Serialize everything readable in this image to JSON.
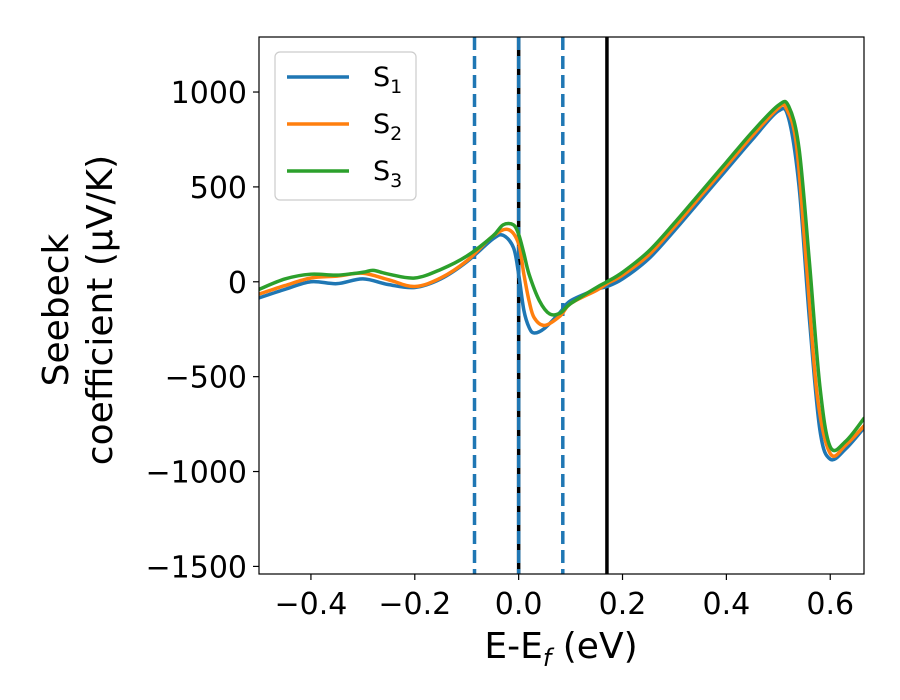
{
  "chart_data": {
    "type": "line",
    "xlabel": "E-E_f (eV)",
    "xlabel_parts": [
      "E-E",
      "f",
      " (eV)"
    ],
    "ylabel_lines": [
      "Seebeck",
      "coefficient  (μV/K)"
    ],
    "xlim": [
      -0.5,
      0.665
    ],
    "ylim": [
      -1540,
      1290
    ],
    "xticks": [
      -0.4,
      -0.2,
      0.0,
      0.2,
      0.4,
      0.6
    ],
    "xtick_labels": [
      "−0.4",
      "−0.2",
      "0.0",
      "0.2",
      "0.4",
      "0.6"
    ],
    "yticks": [
      -1500,
      -1000,
      -500,
      0,
      500,
      1000
    ],
    "ytick_labels": [
      "−1500",
      "−1000",
      "−500",
      "0",
      "500",
      "1000"
    ],
    "grid": false,
    "legend_position": "top-left",
    "series": [
      {
        "name": "S1",
        "label_base": "S",
        "label_sub": "1",
        "color": "#1f77b4",
        "x": [
          -0.5,
          -0.45,
          -0.4,
          -0.35,
          -0.3,
          -0.25,
          -0.2,
          -0.15,
          -0.1,
          -0.05,
          -0.03,
          -0.01,
          0.0,
          0.01,
          0.02,
          0.03,
          0.05,
          0.08,
          0.1,
          0.15,
          0.17,
          0.2,
          0.25,
          0.3,
          0.35,
          0.4,
          0.45,
          0.5,
          0.52,
          0.54,
          0.56,
          0.58,
          0.6,
          0.63,
          0.665
        ],
        "y": [
          -85,
          -40,
          0,
          -10,
          15,
          -15,
          -30,
          15,
          105,
          225,
          245,
          180,
          40,
          -150,
          -240,
          -270,
          -245,
          -160,
          -100,
          -40,
          -25,
          15,
          120,
          270,
          430,
          590,
          750,
          900,
          860,
          500,
          -200,
          -780,
          -935,
          -880,
          -770
        ]
      },
      {
        "name": "S2",
        "label_base": "S",
        "label_sub": "2",
        "color": "#ff7f0e",
        "x": [
          -0.5,
          -0.45,
          -0.4,
          -0.35,
          -0.3,
          -0.25,
          -0.2,
          -0.15,
          -0.1,
          -0.05,
          -0.02,
          0.0,
          0.01,
          0.02,
          0.03,
          0.05,
          0.08,
          0.1,
          0.15,
          0.17,
          0.2,
          0.25,
          0.3,
          0.35,
          0.4,
          0.45,
          0.5,
          0.515,
          0.535,
          0.555,
          0.575,
          0.6,
          0.63,
          0.665
        ],
        "y": [
          -65,
          -20,
          20,
          30,
          45,
          10,
          -25,
          20,
          110,
          240,
          275,
          200,
          40,
          -100,
          -190,
          -230,
          -180,
          -115,
          -45,
          -10,
          35,
          140,
          290,
          450,
          610,
          770,
          915,
          915,
          720,
          60,
          -600,
          -905,
          -860,
          -760
        ]
      },
      {
        "name": "S3",
        "label_base": "S",
        "label_sub": "3",
        "color": "#2ca02c",
        "x": [
          -0.5,
          -0.45,
          -0.4,
          -0.35,
          -0.3,
          -0.28,
          -0.25,
          -0.2,
          -0.15,
          -0.1,
          -0.05,
          -0.03,
          -0.01,
          0.0,
          0.01,
          0.02,
          0.04,
          0.06,
          0.08,
          0.1,
          0.15,
          0.17,
          0.2,
          0.25,
          0.3,
          0.35,
          0.4,
          0.45,
          0.5,
          0.52,
          0.54,
          0.56,
          0.58,
          0.6,
          0.63,
          0.665
        ],
        "y": [
          -40,
          15,
          40,
          35,
          50,
          60,
          40,
          20,
          65,
          135,
          240,
          300,
          300,
          250,
          150,
          40,
          -100,
          -170,
          -165,
          -115,
          -30,
          0,
          50,
          160,
          310,
          470,
          630,
          790,
          930,
          925,
          700,
          100,
          -550,
          -870,
          -840,
          -720
        ]
      }
    ],
    "vertical_lines": [
      {
        "x": -0.085,
        "color": "#1f77b4",
        "style": "dashed"
      },
      {
        "x": 0.0,
        "color": "#000000",
        "style": "solid"
      },
      {
        "x": 0.0,
        "color": "#1f77b4",
        "style": "dashed"
      },
      {
        "x": 0.085,
        "color": "#1f77b4",
        "style": "dashed"
      },
      {
        "x": 0.17,
        "color": "#000000",
        "style": "solid"
      }
    ]
  }
}
